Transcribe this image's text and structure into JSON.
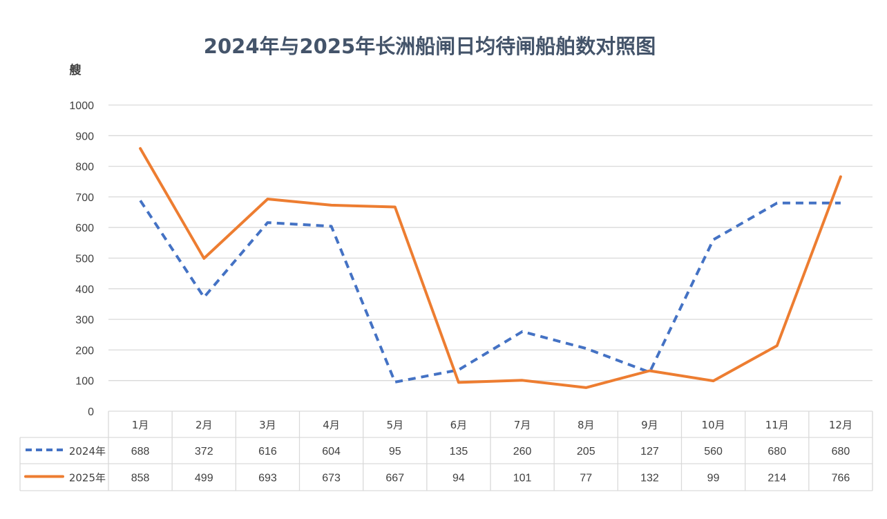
{
  "chart_data": {
    "type": "line",
    "title": "2024年与2025年长洲船闸日均待闸船舶数对照图",
    "ylabel": "艘",
    "xlabel": "",
    "ylim": [
      0,
      1000
    ],
    "yticks": [
      0,
      100,
      200,
      300,
      400,
      500,
      600,
      700,
      800,
      900,
      1000
    ],
    "grid": true,
    "legend": "data-table-left",
    "categories": [
      "1月",
      "2月",
      "3月",
      "4月",
      "5月",
      "6月",
      "7月",
      "8月",
      "9月",
      "10月",
      "11月",
      "12月"
    ],
    "series": [
      {
        "name": "2024年",
        "values": [
          688,
          372,
          616,
          604,
          95,
          135,
          260,
          205,
          127,
          560,
          680,
          680
        ],
        "color": "#4472c4",
        "style": "dashed"
      },
      {
        "name": "2025年",
        "values": [
          858,
          499,
          693,
          673,
          667,
          94,
          101,
          77,
          132,
          99,
          214,
          766
        ],
        "color": "#ed7d31",
        "style": "solid"
      }
    ]
  }
}
